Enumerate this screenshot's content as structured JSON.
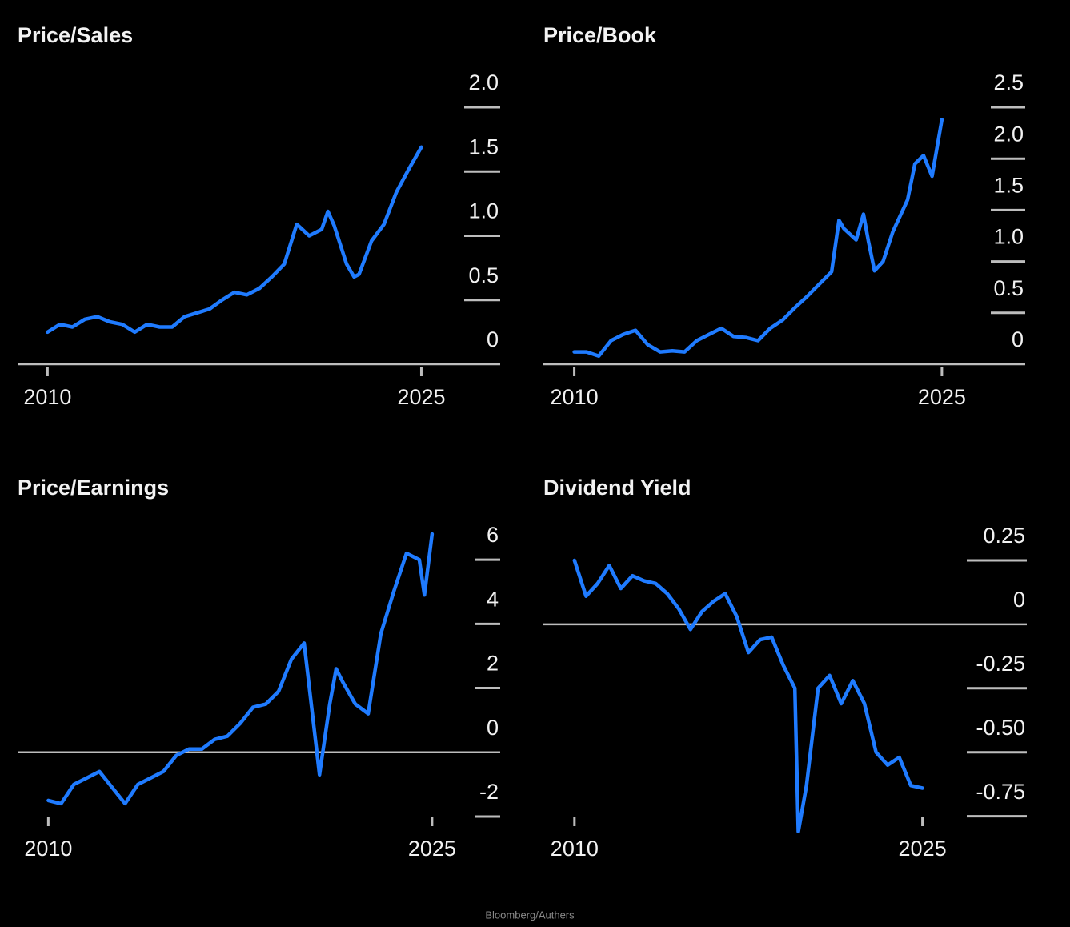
{
  "chart_data": [
    {
      "type": "line",
      "title": "Price/Sales",
      "color": "#1f7bff",
      "x": [
        2010,
        2010.5,
        2011,
        2011.5,
        2012,
        2012.5,
        2013,
        2013.5,
        2014,
        2014.5,
        2015,
        2015.5,
        2016,
        2016.5,
        2017,
        2017.5,
        2018,
        2018.5,
        2019,
        2019.5,
        2020,
        2020.5,
        2021,
        2021.25,
        2021.5,
        2022,
        2022.3,
        2022.5,
        2023,
        2023.5,
        2024,
        2024.5,
        2025
      ],
      "values": [
        0.25,
        0.31,
        0.29,
        0.35,
        0.37,
        0.33,
        0.31,
        0.25,
        0.31,
        0.29,
        0.29,
        0.37,
        0.4,
        0.43,
        0.5,
        0.56,
        0.54,
        0.59,
        0.68,
        0.78,
        1.09,
        1.0,
        1.05,
        1.19,
        1.08,
        0.78,
        0.68,
        0.7,
        0.96,
        1.09,
        1.34,
        1.52,
        1.69
      ],
      "xlim": [
        2008.8,
        2028.1
      ],
      "xticks": [
        2010,
        2025
      ],
      "ylim": [
        0,
        2
      ],
      "yticks": [
        0,
        0.5,
        {
          "value": 1,
          "label": "1.0"
        },
        1.5,
        {
          "value": 2,
          "label": "2.0"
        }
      ]
    },
    {
      "type": "line",
      "title": "Price/Book",
      "color": "#1f7bff",
      "x": [
        2010,
        2010.5,
        2011,
        2011.5,
        2012,
        2012.5,
        2013,
        2013.5,
        2014,
        2014.5,
        2015,
        2015.5,
        2016,
        2016.5,
        2017,
        2017.5,
        2018,
        2018.5,
        2019,
        2019.5,
        2020,
        2020.5,
        2020.8,
        2021,
        2021.5,
        2021.8,
        2022,
        2022.25,
        2022.6,
        2023,
        2023.6,
        2023.9,
        2024.25,
        2024.6,
        2025
      ],
      "values": [
        0.12,
        0.12,
        0.08,
        0.23,
        0.29,
        0.33,
        0.19,
        0.12,
        0.13,
        0.12,
        0.23,
        0.29,
        0.35,
        0.27,
        0.26,
        0.23,
        0.35,
        0.43,
        0.55,
        0.66,
        0.78,
        0.9,
        1.4,
        1.32,
        1.21,
        1.46,
        1.2,
        0.91,
        1.0,
        1.29,
        1.6,
        1.95,
        2.03,
        1.83,
        2.38
      ],
      "xlim": [
        2008.74,
        2028.4
      ],
      "xticks": [
        2010,
        2025
      ],
      "ylim": [
        0,
        2.5
      ],
      "yticks": [
        0,
        0.5,
        {
          "value": 1,
          "label": "1.0"
        },
        1.5,
        {
          "value": 2,
          "label": "2.0"
        },
        2.5
      ]
    },
    {
      "type": "line",
      "title": "Price/Earnings",
      "color": "#1f7bff",
      "x": [
        2010,
        2010.5,
        2011,
        2011.5,
        2012,
        2012.5,
        2013,
        2013.5,
        2014,
        2014.5,
        2015,
        2015.5,
        2016,
        2016.5,
        2017,
        2017.5,
        2018,
        2018.5,
        2019,
        2019.5,
        2020,
        2020.6,
        2021,
        2021.25,
        2021.5,
        2022,
        2022.5,
        2023,
        2023.5,
        2024,
        2024.5,
        2024.7,
        2025
      ],
      "values": [
        -1.5,
        -1.6,
        -1.0,
        -0.8,
        -0.6,
        -1.1,
        -1.6,
        -1.0,
        -0.8,
        -0.6,
        -0.1,
        0.1,
        0.1,
        0.4,
        0.5,
        0.9,
        1.4,
        1.5,
        1.9,
        2.9,
        3.4,
        -0.7,
        1.5,
        2.6,
        2.2,
        1.5,
        1.2,
        3.7,
        5.0,
        6.2,
        6.0,
        4.9,
        6.8
      ],
      "xlim": [
        2008.8,
        2027.6
      ],
      "xticks": [
        2010,
        2025
      ],
      "ylim": [
        -2.1,
        7
      ],
      "yticks": [
        -2,
        0,
        2,
        4,
        6
      ]
    },
    {
      "type": "line",
      "title": "Dividend Yield",
      "color": "#1f7bff",
      "x": [
        2010,
        2010.5,
        2011,
        2011.5,
        2012,
        2012.5,
        2013,
        2013.5,
        2014,
        2014.5,
        2015,
        2015.5,
        2016,
        2016.5,
        2017,
        2017.5,
        2018,
        2018.5,
        2019,
        2019.5,
        2019.65,
        2020,
        2020.5,
        2021,
        2021.5,
        2022,
        2022.5,
        2023,
        2023.5,
        2024,
        2024.5,
        2025
      ],
      "values": [
        0.25,
        0.11,
        0.16,
        0.23,
        0.14,
        0.19,
        0.17,
        0.16,
        0.12,
        0.06,
        -0.02,
        0.05,
        0.09,
        0.12,
        0.03,
        -0.11,
        -0.06,
        -0.05,
        -0.16,
        -0.25,
        -0.81,
        -0.63,
        -0.25,
        -0.2,
        -0.31,
        -0.22,
        -0.31,
        -0.5,
        -0.55,
        -0.52,
        -0.63,
        -0.64
      ],
      "xlim": [
        2008.66,
        2029.5
      ],
      "xticks": [
        2010,
        2025
      ],
      "ylim": [
        -0.82,
        0.3
      ],
      "yticks": [
        -0.75,
        {
          "value": -0.5,
          "label": "-0.50"
        },
        -0.25,
        0,
        0.25
      ]
    }
  ],
  "source": "Bloomberg/Authers"
}
